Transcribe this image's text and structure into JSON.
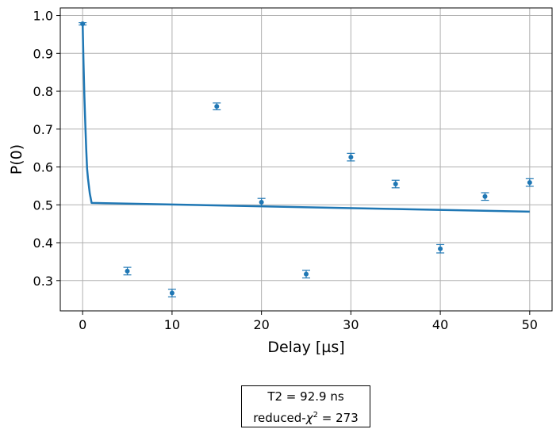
{
  "chart_data": {
    "type": "scatter",
    "xlabel": "Delay [µs]",
    "ylabel": "P(0)",
    "xlim": [
      -2.5,
      52.5
    ],
    "ylim": [
      0.22,
      1.02
    ],
    "x_ticks": [
      0,
      10,
      20,
      30,
      40,
      50
    ],
    "y_ticks": [
      0.3,
      0.4,
      0.5,
      0.6,
      0.7,
      0.8,
      0.9,
      1.0
    ],
    "x_tick_labels": [
      "0",
      "10",
      "20",
      "30",
      "40",
      "50"
    ],
    "y_tick_labels": [
      "0.3",
      "0.4",
      "0.5",
      "0.6",
      "0.7",
      "0.8",
      "0.9",
      "1.0"
    ],
    "grid": true,
    "points": {
      "x": [
        0,
        5,
        10,
        15,
        20,
        25,
        30,
        35,
        40,
        45,
        50
      ],
      "y": [
        0.978,
        0.325,
        0.267,
        0.76,
        0.507,
        0.317,
        0.626,
        0.555,
        0.384,
        0.522,
        0.559
      ],
      "yerr": [
        0.003,
        0.01,
        0.01,
        0.009,
        0.01,
        0.01,
        0.01,
        0.01,
        0.011,
        0.01,
        0.01
      ],
      "color": "#1f77b4"
    },
    "fit": {
      "x": [
        0,
        0.1,
        0.2,
        0.3,
        0.4,
        0.5,
        0.6,
        0.8,
        1.0,
        50
      ],
      "y": [
        0.978,
        0.873,
        0.785,
        0.71,
        0.647,
        0.595,
        0.57,
        0.53,
        0.505,
        0.482
      ],
      "color": "#1f77b4"
    }
  },
  "info_box": {
    "t2_label": "T2 =",
    "t2_value": "92.9 ns",
    "chi_label": "reduced-",
    "chi_symbol": "χ",
    "chi_exp": "2",
    "chi_eq": " =",
    "chi_value": "273"
  }
}
